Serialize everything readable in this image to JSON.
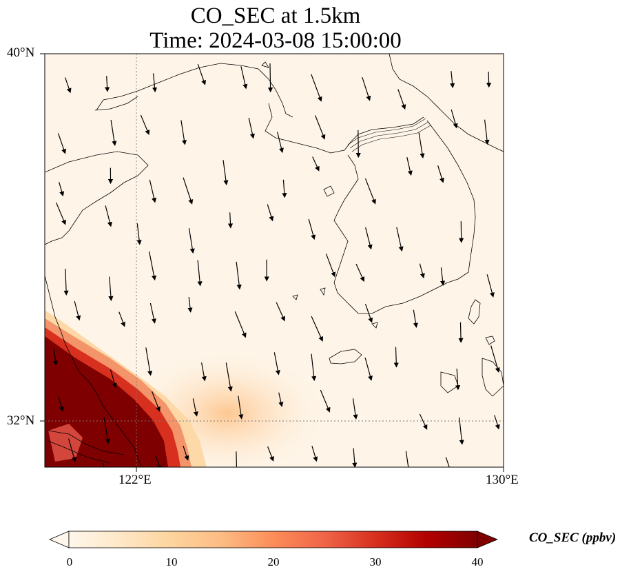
{
  "title": {
    "line1": "CO_SEC at 1.5km",
    "line2": "Time: 2024-03-08 15:00:00"
  },
  "map": {
    "extent": {
      "lon_min": 118,
      "lon_max": 130,
      "lat_min": 30.8,
      "lat_max": 40
    },
    "lat_ticks": [
      {
        "value": 40,
        "label": "40°N"
      },
      {
        "value": 32,
        "label": "32°N"
      }
    ],
    "lon_ticks": [
      {
        "value": 122,
        "label": "122°E"
      },
      {
        "value": 130,
        "label": "130°E"
      }
    ],
    "gridlines": {
      "lon": 122,
      "lat": 32
    },
    "plume_center": {
      "lon": 118.4,
      "lat": 31.2
    },
    "wind_direction": "north-northwest to south-southeast"
  },
  "colorbar": {
    "label": "CO_SEC (ppbv)",
    "range": [
      0,
      40
    ],
    "ticks": [
      "0",
      "10",
      "20",
      "30",
      "40"
    ],
    "colormap": [
      "#fff7ec",
      "#fee8c8",
      "#fdd49e",
      "#fdbb84",
      "#fc8d59",
      "#ef6548",
      "#d7301f",
      "#b30000",
      "#7f0000"
    ]
  }
}
